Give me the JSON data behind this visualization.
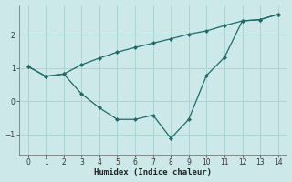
{
  "xlabel": "Humidex (Indice chaleur)",
  "background_color": "#cce8e8",
  "grid_color": "#aad4d4",
  "line_color": "#1e6b6b",
  "xlim": [
    -0.5,
    14.5
  ],
  "ylim": [
    -1.6,
    2.9
  ],
  "yticks": [
    -1,
    0,
    1,
    2
  ],
  "xticks": [
    0,
    1,
    2,
    3,
    4,
    5,
    6,
    7,
    8,
    9,
    10,
    11,
    12,
    13,
    14
  ],
  "line1_x": [
    0,
    1,
    2,
    3,
    4,
    5,
    6,
    7,
    8,
    9,
    10,
    11,
    12,
    13,
    14
  ],
  "line1_y": [
    1.05,
    0.75,
    0.82,
    1.1,
    1.3,
    1.48,
    1.62,
    1.75,
    1.88,
    2.02,
    2.12,
    2.28,
    2.42,
    2.46,
    2.62
  ],
  "line2_x": [
    0,
    1,
    2,
    3,
    4,
    5,
    6,
    7,
    8,
    9,
    10,
    11,
    12,
    13,
    14
  ],
  "line2_y": [
    1.05,
    0.75,
    0.82,
    0.22,
    -0.2,
    -0.55,
    -0.55,
    -0.42,
    -1.12,
    -0.55,
    0.78,
    1.32,
    2.42,
    2.46,
    2.62
  ],
  "tick_fontsize": 5.5,
  "xlabel_fontsize": 6.5
}
